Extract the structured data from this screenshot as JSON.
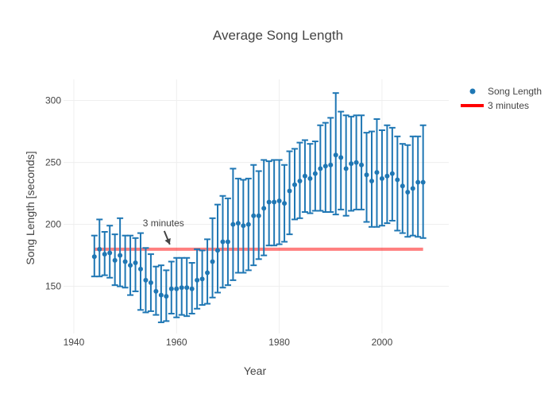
{
  "chart_data": {
    "type": "scatter",
    "title": "Average Song Length",
    "xlabel": "Year",
    "ylabel": "Song Length [seconds]",
    "xlim": [
      1938,
      2013
    ],
    "ylim": [
      112,
      317
    ],
    "xticks": [
      1940,
      1960,
      1980,
      2000
    ],
    "yticks": [
      150,
      200,
      250,
      300
    ],
    "grid": true,
    "legend_position": "top-right",
    "series": [
      {
        "name": "Song Length",
        "color": "#1f77b4",
        "x": [
          1944,
          1945,
          1946,
          1947,
          1948,
          1949,
          1950,
          1951,
          1952,
          1953,
          1954,
          1955,
          1956,
          1957,
          1958,
          1959,
          1960,
          1961,
          1962,
          1963,
          1964,
          1965,
          1966,
          1967,
          1968,
          1969,
          1970,
          1971,
          1972,
          1973,
          1974,
          1975,
          1976,
          1977,
          1978,
          1979,
          1980,
          1981,
          1982,
          1983,
          1984,
          1985,
          1986,
          1987,
          1988,
          1989,
          1990,
          1991,
          1992,
          1993,
          1994,
          1995,
          1996,
          1997,
          1998,
          1999,
          2000,
          2001,
          2002,
          2003,
          2004,
          2005,
          2006,
          2007,
          2008
        ],
        "y": [
          174,
          180,
          176,
          177,
          171,
          175,
          170,
          167,
          169,
          164,
          155,
          153,
          146,
          143,
          142,
          148,
          148,
          149,
          149,
          148,
          155,
          156,
          161,
          170,
          179,
          186,
          186,
          200,
          201,
          199,
          200,
          207,
          207,
          213,
          218,
          218,
          219,
          217,
          227,
          232,
          235,
          239,
          237,
          241,
          245,
          247,
          248,
          256,
          254,
          245,
          249,
          250,
          248,
          240,
          235,
          242,
          237,
          239,
          241,
          236,
          231,
          226,
          229,
          234,
          234
        ],
        "error_minus": [
          16,
          22,
          17,
          20,
          20,
          25,
          21,
          24,
          23,
          33,
          26,
          23,
          19,
          22,
          20,
          20,
          23,
          22,
          23,
          20,
          23,
          21,
          25,
          29,
          34,
          37,
          35,
          45,
          40,
          38,
          37,
          40,
          35,
          38,
          35,
          35,
          35,
          31,
          35,
          28,
          30,
          29,
          28,
          30,
          34,
          37,
          38,
          48,
          42,
          38,
          38,
          38,
          36,
          38,
          37,
          44,
          38,
          38,
          38,
          41,
          38,
          36,
          38,
          44,
          45
        ],
        "error_plus": [
          17,
          24,
          18,
          22,
          21,
          30,
          21,
          24,
          20,
          29,
          26,
          23,
          20,
          24,
          21,
          22,
          25,
          24,
          24,
          21,
          25,
          23,
          27,
          35,
          37,
          37,
          35,
          45,
          36,
          37,
          37,
          41,
          36,
          39,
          33,
          34,
          33,
          31,
          32,
          29,
          31,
          29,
          28,
          26,
          35,
          35,
          38,
          50,
          37,
          43,
          38,
          38,
          40,
          34,
          40,
          43,
          39,
          41,
          37,
          35,
          34,
          38,
          42,
          37,
          46
        ]
      },
      {
        "name": "3 minutes",
        "color": "#ff0000",
        "x": [
          1944,
          2008
        ],
        "y": [
          180,
          180
        ]
      }
    ],
    "annotations": [
      {
        "text": "3 minutes",
        "x": 1959,
        "y": 180
      }
    ]
  }
}
